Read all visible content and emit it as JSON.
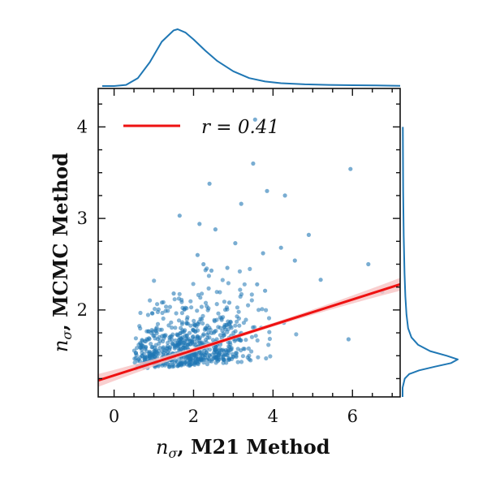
{
  "chart_data": {
    "type": "scatter",
    "xlabel_symbol": "n",
    "xlabel_subscript": "σ",
    "xlabel_text": ", M21 Method",
    "ylabel_symbol": "n",
    "ylabel_subscript": "σ",
    "ylabel_text": ", MCMC Method",
    "xlim": [
      -0.4,
      7.2
    ],
    "ylim": [
      1.05,
      4.42
    ],
    "x_ticks": [
      0,
      2,
      4,
      6
    ],
    "x_tick_labels": [
      "0",
      "2",
      "4",
      "6"
    ],
    "y_ticks": [
      2,
      3,
      4
    ],
    "y_tick_labels": [
      "2",
      "3",
      "4"
    ],
    "legend": {
      "label": "r = 0.41",
      "placement": "top-left",
      "color": "#ee1111"
    },
    "regression": {
      "x": [
        -0.4,
        7.2
      ],
      "y": [
        1.23,
        2.28
      ],
      "band_halfwidth": [
        0.04,
        0.07
      ],
      "color": "#ee1111",
      "band_color": "#f7c3c3"
    },
    "scatter_color": "#1f77b4",
    "series": [
      {
        "name": "points",
        "x": [
          3.55,
          5.95,
          3.5,
          2.4,
          3.85,
          4.3,
          1.65,
          3.2,
          2.15,
          2.55,
          3.05,
          3.75,
          4.9,
          2.1,
          2.25,
          2.45,
          3.6,
          4.55,
          6.4,
          5.2,
          2.85,
          4.2,
          3.8,
          1.5,
          2.9,
          5.9,
          6.75
        ],
        "y": [
          4.08,
          3.54,
          3.6,
          3.38,
          3.3,
          3.25,
          3.03,
          3.16,
          2.94,
          2.88,
          2.73,
          2.62,
          2.82,
          2.6,
          2.5,
          2.43,
          2.28,
          2.54,
          2.5,
          2.33,
          2.46,
          2.68,
          2.21,
          2.18,
          2.08,
          1.68,
          2.2
        ]
      }
    ],
    "cluster": {
      "count": 720,
      "x_center": 1.9,
      "x_spread": 0.85,
      "y_floor": 1.38,
      "y_scale": 0.28
    },
    "marginal_x_density": {
      "x": [
        -0.3,
        0.0,
        0.3,
        0.6,
        0.9,
        1.2,
        1.5,
        1.6,
        1.8,
        2.0,
        2.3,
        2.6,
        3.0,
        3.4,
        3.8,
        4.2,
        4.8,
        5.4,
        6.0,
        6.6,
        7.2
      ],
      "density": [
        0.0,
        0.0,
        0.02,
        0.14,
        0.42,
        0.78,
        0.98,
        1.0,
        0.94,
        0.82,
        0.62,
        0.44,
        0.26,
        0.14,
        0.08,
        0.05,
        0.03,
        0.02,
        0.015,
        0.01,
        0.005
      ]
    },
    "marginal_y_density": {
      "y": [
        1.05,
        1.15,
        1.25,
        1.3,
        1.34,
        1.38,
        1.42,
        1.46,
        1.5,
        1.55,
        1.62,
        1.7,
        1.8,
        1.95,
        2.15,
        2.4,
        2.8,
        3.3,
        4.0
      ],
      "density": [
        0.0,
        0.0,
        0.04,
        0.12,
        0.3,
        0.58,
        0.88,
        1.0,
        0.8,
        0.5,
        0.28,
        0.16,
        0.1,
        0.07,
        0.05,
        0.035,
        0.02,
        0.01,
        0.005
      ]
    }
  }
}
